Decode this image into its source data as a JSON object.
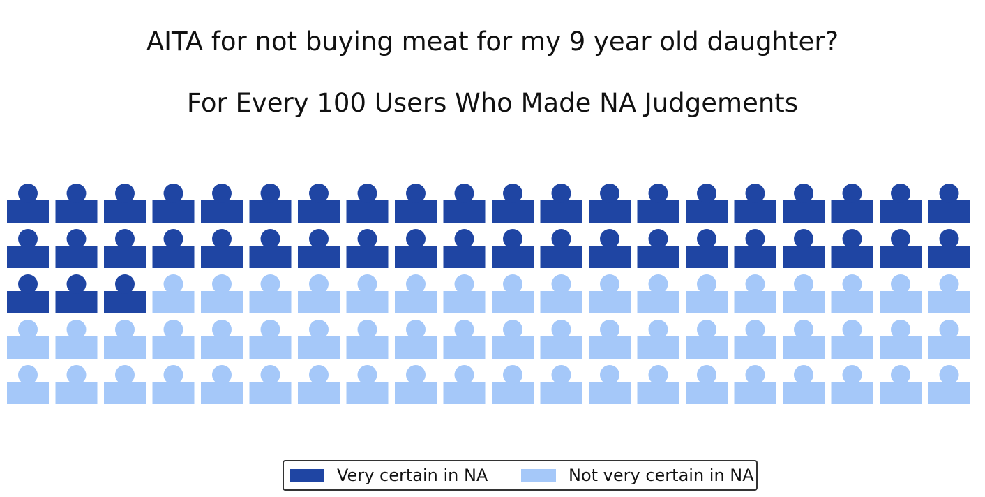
{
  "chart_data": {
    "type": "waffle",
    "title": "AITA for not buying meat for my 9 year old daughter?",
    "subtitle": "For Every 100 Users Who Made NA Judgements",
    "icon": "person-icon",
    "rows": 5,
    "columns": 20,
    "series": [
      {
        "name": "Very certain in NA",
        "value": 43,
        "color": "#1f45a3"
      },
      {
        "name": "Not very certain in NA",
        "value": 57,
        "color": "#a5c8f9"
      }
    ],
    "legend_position": "bottom-center"
  }
}
